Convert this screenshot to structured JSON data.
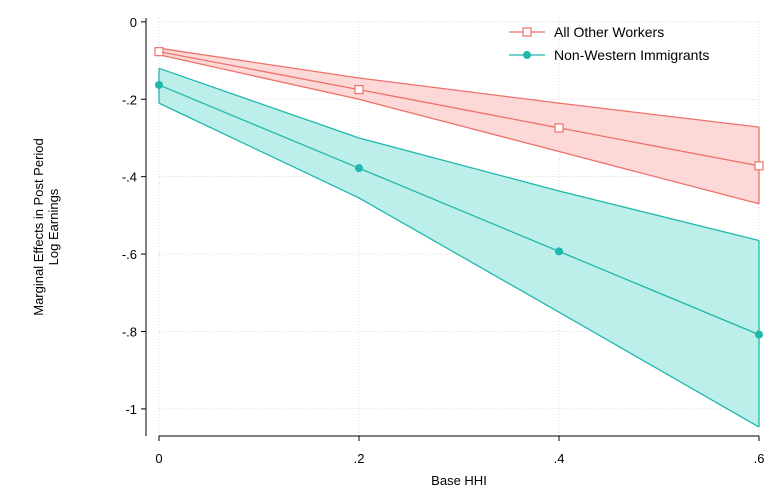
{
  "chart_data": {
    "type": "line",
    "title": "",
    "xlabel": "Base HHI",
    "ylabel_lines": [
      "Marginal Effects in Post Period",
      "Log Earnings"
    ],
    "x": [
      0,
      0.2,
      0.4,
      0.6
    ],
    "x_tick_values": [
      0,
      0.2,
      0.4,
      0.6
    ],
    "x_tick_labels": [
      "0",
      ".2",
      ".4",
      ".6"
    ],
    "y_tick_values": [
      0,
      -0.2,
      -0.4,
      -0.6,
      -0.8,
      -1
    ],
    "y_tick_labels": [
      "0",
      "-.2",
      "-.4",
      "-.6",
      "-.8",
      "-1"
    ],
    "xlim": [
      0,
      0.6
    ],
    "ylim": [
      -1.07,
      0.01
    ],
    "grid": true,
    "legend_position": "top-right",
    "series": [
      {
        "name": "All Other Workers",
        "values": [
          -0.077,
          -0.175,
          -0.274,
          -0.372
        ],
        "ci_lower": [
          -0.085,
          -0.2,
          -0.335,
          -0.47
        ],
        "ci_upper": [
          -0.068,
          -0.145,
          -0.21,
          -0.272
        ],
        "color": "#f0706a",
        "fill": "#fcd9d7",
        "marker": "hollow-square"
      },
      {
        "name": "Non-Western Immigrants",
        "values": [
          -0.163,
          -0.378,
          -0.593,
          -0.808
        ],
        "ci_lower": [
          -0.21,
          -0.455,
          -0.75,
          -1.047
        ],
        "ci_upper": [
          -0.12,
          -0.3,
          -0.437,
          -0.565
        ],
        "color": "#1fb8ac",
        "fill": "#bdefea",
        "marker": "filled-circle"
      }
    ]
  }
}
